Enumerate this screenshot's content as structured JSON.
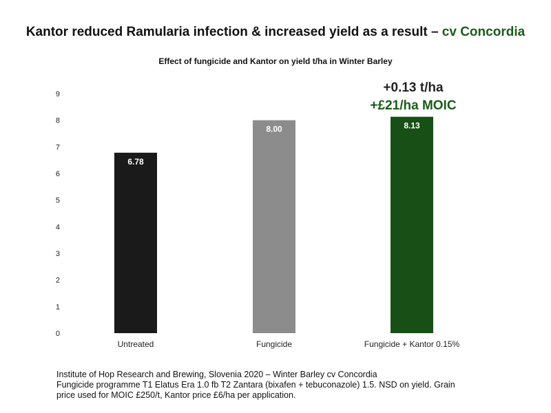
{
  "title": {
    "main": "Kantor reduced Ramularia infection & increased yield as a result – ",
    "highlight": "cv Concordia"
  },
  "subtitle": "Effect of fungicide and Kantor on yield t/ha in Winter Barley",
  "callout": {
    "line1": "+0.13 t/ha",
    "line2": "+£21/ha MOIC"
  },
  "footnote": {
    "line1": "Institute of Hop Research and Brewing, Slovenia 2020 – Winter Barley cv Concordia",
    "line2": "Fungicide programme T1 Elatus Era 1.0 fb T2 Zantara (bixafen + tebuconazole) 1.5. NSD on yield. Grain",
    "line3": "price used for MOIC £250/t, Kantor price £6/ha per application."
  },
  "colors": {
    "accent": "#1a5c1a",
    "untreated": "#1a1a1a",
    "fungicide": "#8c8c8c",
    "kantor": "#174f17"
  },
  "chart_data": {
    "type": "bar",
    "title": "Effect of fungicide and Kantor on yield t/ha in Winter Barley",
    "xlabel": "",
    "ylabel": "",
    "categories": [
      "Untreated",
      "Fungicide",
      "Fungicide + Kantor 0.15%"
    ],
    "values": [
      6.78,
      8.0,
      8.13
    ],
    "data_labels": [
      "6.78",
      "8.00",
      "8.13"
    ],
    "yticks": [
      "0",
      "1",
      "2",
      "3",
      "4",
      "5",
      "6",
      "7",
      "8",
      "9"
    ],
    "ylim": [
      0,
      9
    ],
    "grid": false,
    "legend": "none"
  }
}
